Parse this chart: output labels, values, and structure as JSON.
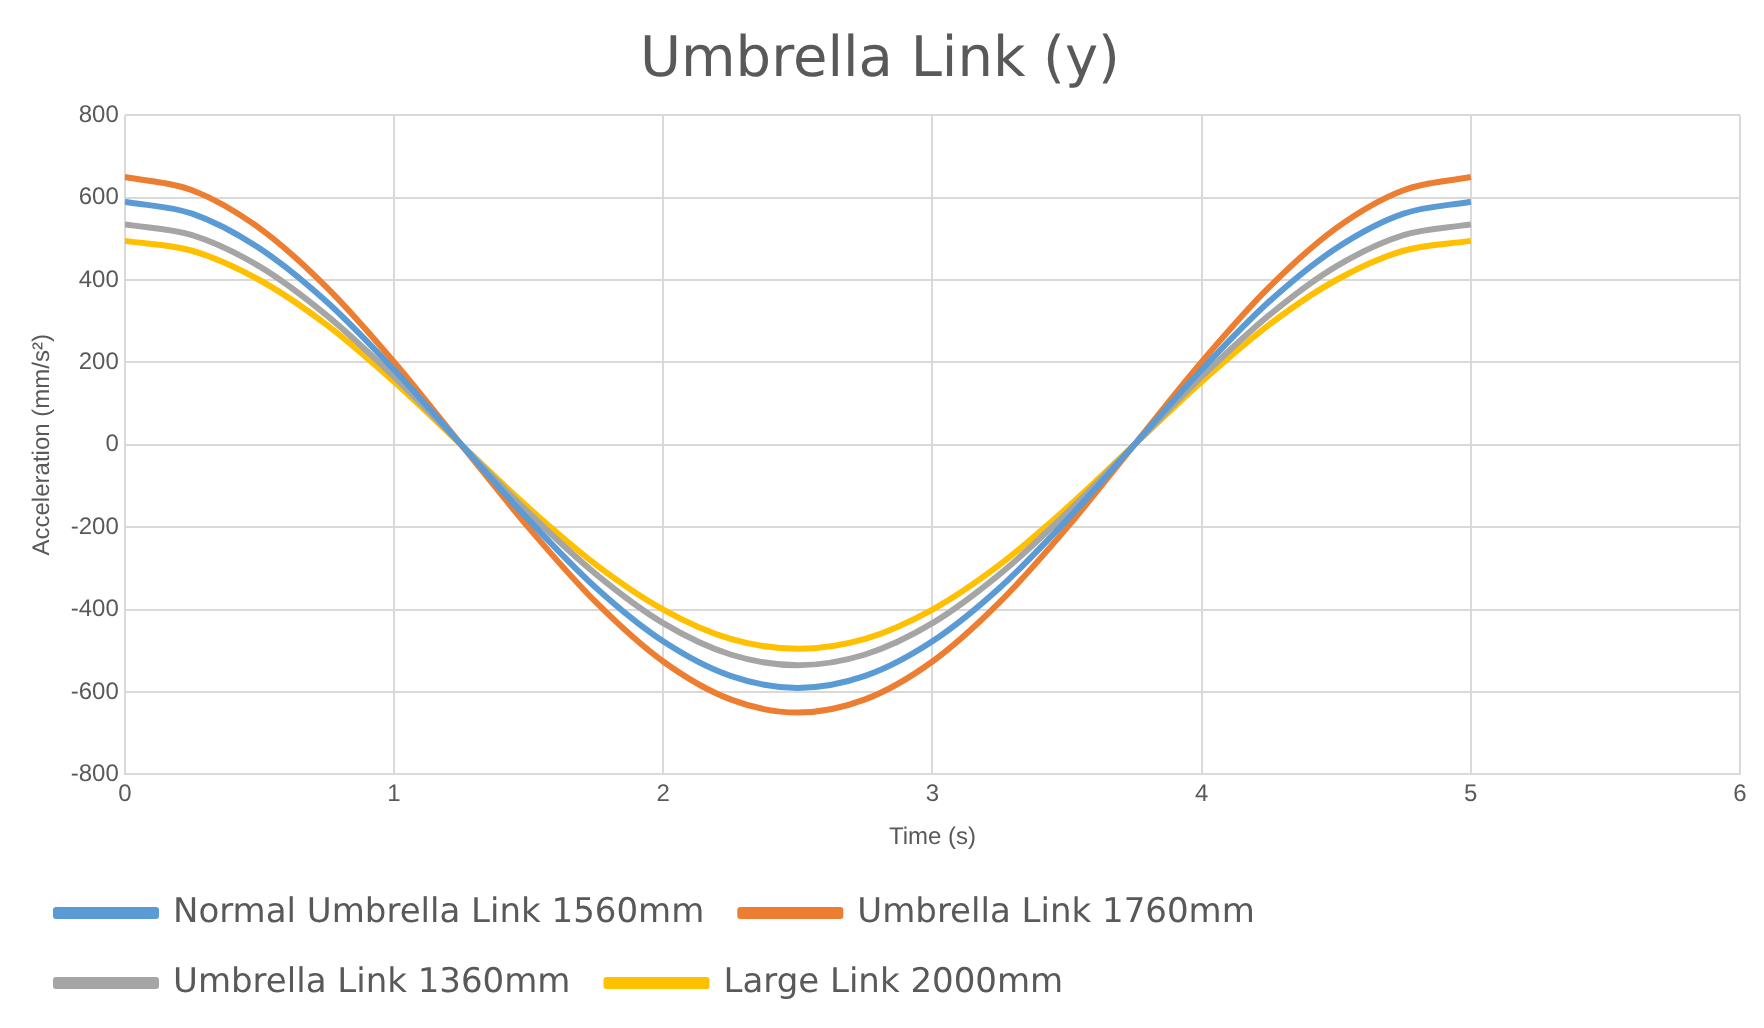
{
  "chart_data": {
    "type": "line",
    "title": "Umbrella Link (y)",
    "xlabel": "Time (s)",
    "ylabel": "Acceleration (mm/s²)",
    "x": [
      0,
      0.25,
      0.5,
      0.75,
      1,
      1.25,
      1.5,
      1.75,
      2,
      2.25,
      2.5,
      2.75,
      3,
      3.25,
      3.5,
      3.75,
      4,
      4.25,
      4.5,
      4.75,
      5
    ],
    "series": [
      {
        "name": "Normal Umbrella Link 1560mm",
        "color": "#5b9bd5",
        "values": [
          590,
          561,
          477,
          347,
          182,
          0,
          -182,
          -347,
          -477,
          -561,
          -590,
          -561,
          -477,
          -347,
          -182,
          0,
          182,
          347,
          477,
          561,
          590
        ]
      },
      {
        "name": "Umbrella Link 1760mm",
        "color": "#ed7d31",
        "values": [
          650,
          618,
          526,
          382,
          201,
          0,
          -201,
          -382,
          -526,
          -618,
          -650,
          -618,
          -526,
          -382,
          -201,
          0,
          201,
          382,
          526,
          618,
          650
        ]
      },
      {
        "name": "Umbrella Link 1360mm",
        "color": "#a5a5a5",
        "values": [
          535,
          509,
          433,
          314,
          165,
          0,
          -165,
          -314,
          -433,
          -509,
          -535,
          -509,
          -433,
          -314,
          -165,
          0,
          165,
          314,
          433,
          509,
          535
        ]
      },
      {
        "name": "Large Link 2000mm",
        "color": "#ffc000",
        "values": [
          495,
          471,
          400,
          291,
          153,
          0,
          -153,
          -291,
          -400,
          -471,
          -495,
          -471,
          -400,
          -291,
          -153,
          0,
          153,
          291,
          400,
          471,
          495
        ]
      }
    ],
    "xlim": [
      0,
      6
    ],
    "xticks": [
      0,
      1,
      2,
      3,
      4,
      5,
      6
    ],
    "ylim": [
      -800,
      800
    ],
    "yticks": [
      -800,
      -600,
      -400,
      -200,
      0,
      200,
      400,
      600,
      800
    ],
    "grid": true,
    "legend": "bottom",
    "marker": "none",
    "line_style": "solid"
  }
}
